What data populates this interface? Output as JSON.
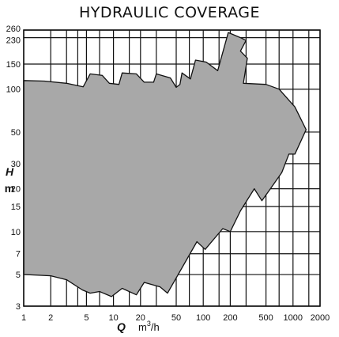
{
  "chart_data": {
    "type": "area",
    "title": "HYDRAULIC COVERAGE",
    "xlabel": {
      "symbol": "Q",
      "unit_base": "m",
      "unit_power": "3",
      "unit_tail": "/h"
    },
    "ylabel": {
      "symbol": "H",
      "unit": "m"
    },
    "x_scale": "log",
    "y_scale": "log",
    "xlim": [
      1,
      2000
    ],
    "ylim": [
      3,
      260
    ],
    "grid": true,
    "x_ticks": [
      1,
      2,
      5,
      10,
      20,
      50,
      100,
      200,
      500,
      1000,
      2000
    ],
    "x_tick_labels": [
      "1",
      "2",
      "5",
      "10",
      "20",
      "50",
      "100",
      "200",
      "500",
      "1000",
      "2000"
    ],
    "x_grid": [
      1,
      2,
      3,
      4,
      5,
      7,
      10,
      15,
      20,
      30,
      50,
      70,
      100,
      150,
      200,
      300,
      500,
      700,
      1000,
      1500,
      2000
    ],
    "y_ticks": [
      3,
      5,
      7,
      10,
      15,
      20,
      30,
      50,
      100,
      150,
      230,
      260
    ],
    "y_tick_labels": [
      "3",
      "5",
      "7",
      "10",
      "15",
      "20",
      "30",
      "50",
      "100",
      "150",
      "230",
      "260"
    ],
    "y_grid": [
      3,
      5,
      7,
      10,
      15,
      20,
      30,
      50,
      100,
      150,
      230,
      260
    ],
    "fill_color": "#a8a8a8",
    "edge_color": "#111111",
    "grid_color": "#111111",
    "region": [
      [
        1.0,
        115
      ],
      [
        1.7,
        114
      ],
      [
        3.0,
        110
      ],
      [
        4.6,
        104
      ],
      [
        5.5,
        128
      ],
      [
        7.5,
        125
      ],
      [
        9.0,
        110
      ],
      [
        11.5,
        108
      ],
      [
        12.5,
        130
      ],
      [
        18.0,
        128
      ],
      [
        22.0,
        112
      ],
      [
        28.0,
        112
      ],
      [
        30.0,
        128
      ],
      [
        43.0,
        120
      ],
      [
        50.0,
        103
      ],
      [
        55.0,
        108
      ],
      [
        58.0,
        130
      ],
      [
        72.0,
        118
      ],
      [
        82.0,
        160
      ],
      [
        108.0,
        155
      ],
      [
        145.0,
        135
      ],
      [
        190.0,
        250
      ],
      [
        260.0,
        230
      ],
      [
        300.0,
        220
      ],
      [
        260.0,
        185
      ],
      [
        310.0,
        165
      ],
      [
        280.0,
        110
      ],
      [
        500.0,
        108
      ],
      [
        700.0,
        100
      ],
      [
        1050.0,
        75
      ],
      [
        1400.0,
        52
      ],
      [
        1050.0,
        35
      ],
      [
        900.0,
        35
      ],
      [
        750.0,
        26
      ],
      [
        560.0,
        20
      ],
      [
        450.0,
        16.5
      ],
      [
        370.0,
        20
      ],
      [
        260.0,
        14
      ],
      [
        200.0,
        10
      ],
      [
        165.0,
        10.5
      ],
      [
        105.0,
        7.5
      ],
      [
        85.0,
        8.5
      ],
      [
        40.0,
        3.7
      ],
      [
        33.0,
        4.1
      ],
      [
        22.0,
        4.4
      ],
      [
        18.0,
        3.6
      ],
      [
        12.5,
        4.0
      ],
      [
        9.5,
        3.5
      ],
      [
        7.0,
        3.8
      ],
      [
        5.5,
        3.7
      ],
      [
        4.5,
        3.9
      ],
      [
        3.0,
        4.6
      ],
      [
        2.0,
        4.9
      ],
      [
        1.0,
        5.0
      ]
    ]
  }
}
